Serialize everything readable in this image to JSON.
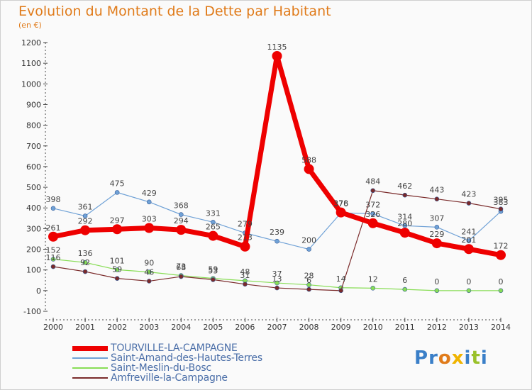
{
  "header": {
    "title": "Evolution du Montant de la Dette par Habitant",
    "unit": "(en €)"
  },
  "logo": {
    "text": "Proxiti"
  },
  "chart_data": {
    "type": "line",
    "x": [
      2000,
      2001,
      2002,
      2003,
      2004,
      2005,
      2006,
      2007,
      2008,
      2009,
      2010,
      2011,
      2012,
      2013,
      2014
    ],
    "ylim": [
      -100,
      1200
    ],
    "yticks": [
      -100,
      0,
      100,
      200,
      300,
      400,
      500,
      600,
      700,
      800,
      900,
      1000,
      1100,
      1200
    ],
    "grid": false,
    "legend_position": "bottom-left",
    "series": [
      {
        "name": "TOURVILLE-LA-CAMPAGNE",
        "color": "#ee0000",
        "width": 7,
        "marker": 7,
        "values": [
          261,
          292,
          297,
          303,
          294,
          265,
          213,
          1135,
          588,
          378,
          326,
          280,
          229,
          201,
          172
        ],
        "labels": [
          "261",
          "292",
          "297",
          "303",
          "294",
          "265",
          "213",
          "1135",
          "588",
          "378",
          "326",
          "280",
          "229",
          "201",
          "172"
        ]
      },
      {
        "name": "Saint-Amand-des-Hautes-Terres",
        "color": "#6fa1d6",
        "width": 1.2,
        "marker": 3,
        "values": [
          398,
          361,
          475,
          429,
          368,
          331,
          279,
          239,
          200,
          376,
          372,
          314,
          307,
          241,
          383
        ],
        "labels": [
          "398",
          "361",
          "475",
          "429",
          "368",
          "331",
          "279",
          "239",
          "200",
          "376",
          "372",
          "314",
          "307",
          "241",
          "383"
        ]
      },
      {
        "name": "Saint-Meslin-du-Bosc",
        "color": "#88dd55",
        "width": 1.2,
        "marker": 3,
        "values": [
          152,
          136,
          101,
          90,
          73,
          59,
          48,
          37,
          28,
          14,
          12,
          6,
          0,
          0,
          0
        ],
        "labels": [
          "152",
          "136",
          "101",
          "90",
          "73",
          "59",
          "48",
          "37",
          "28",
          "14",
          "12",
          "6",
          "0",
          "0",
          "0"
        ]
      },
      {
        "name": "Amfreville-la-Campagne",
        "color": "#7a2a2a",
        "width": 1.2,
        "marker": 3,
        "values": [
          116,
          92,
          59,
          46,
          68,
          53,
          31,
          13,
          6,
          0,
          484,
          462,
          443,
          423,
          395
        ],
        "labels": [
          "116",
          "92",
          "59",
          "46",
          "68",
          "53",
          "31",
          "13",
          "6",
          "",
          "484",
          "462",
          "443",
          "423",
          "395"
        ]
      }
    ]
  }
}
